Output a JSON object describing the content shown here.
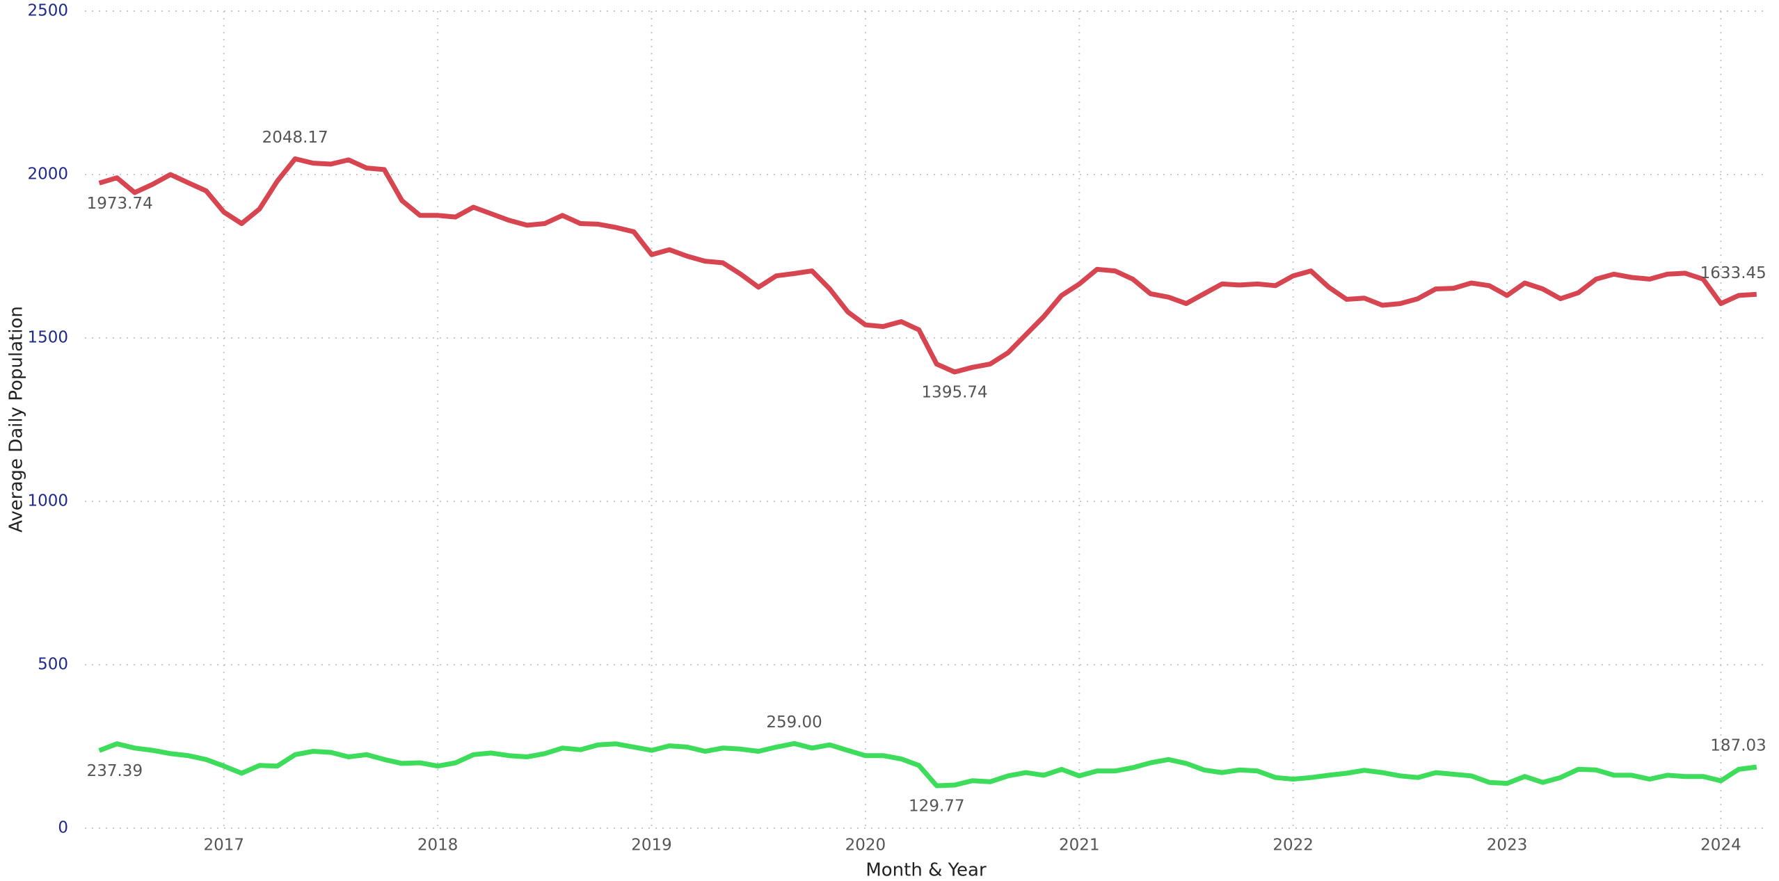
{
  "chart_data": {
    "type": "line",
    "x_label": "Month & Year",
    "y_label": "Average Daily Population",
    "x": [
      2016.417,
      2016.5,
      2016.583,
      2016.667,
      2016.75,
      2016.833,
      2016.917,
      2017.0,
      2017.083,
      2017.167,
      2017.25,
      2017.333,
      2017.417,
      2017.5,
      2017.583,
      2017.667,
      2017.75,
      2017.833,
      2017.917,
      2018.0,
      2018.083,
      2018.167,
      2018.25,
      2018.333,
      2018.417,
      2018.5,
      2018.583,
      2018.667,
      2018.75,
      2018.833,
      2018.917,
      2019.0,
      2019.083,
      2019.167,
      2019.25,
      2019.333,
      2019.417,
      2019.5,
      2019.583,
      2019.667,
      2019.75,
      2019.833,
      2019.917,
      2020.0,
      2020.083,
      2020.167,
      2020.25,
      2020.333,
      2020.417,
      2020.5,
      2020.583,
      2020.667,
      2020.75,
      2020.833,
      2020.917,
      2021.0,
      2021.083,
      2021.167,
      2021.25,
      2021.333,
      2021.417,
      2021.5,
      2021.583,
      2021.667,
      2021.75,
      2021.833,
      2021.917,
      2022.0,
      2022.083,
      2022.167,
      2022.25,
      2022.333,
      2022.417,
      2022.5,
      2022.583,
      2022.667,
      2022.75,
      2022.833,
      2022.917,
      2023.0,
      2023.083,
      2023.167,
      2023.25,
      2023.333,
      2023.417,
      2023.5,
      2023.583,
      2023.667,
      2023.75,
      2023.833,
      2023.917,
      2024.0,
      2024.083,
      2024.167
    ],
    "series": [
      {
        "color": "#d64550",
        "values": [
          1973.74,
          1990,
          1945,
          1970,
          2000,
          1975,
          1950,
          1885,
          1850,
          1895,
          1980,
          2048.17,
          2035,
          2032,
          2045,
          2020,
          2015,
          1920,
          1875,
          1875,
          1870,
          1900,
          1880,
          1860,
          1845,
          1850,
          1875,
          1850,
          1848,
          1838,
          1825,
          1755,
          1770,
          1750,
          1735,
          1730,
          1695,
          1655,
          1690,
          1697,
          1705,
          1650,
          1580,
          1540,
          1535,
          1550,
          1525,
          1420,
          1395.74,
          1410,
          1420,
          1455,
          1510,
          1565,
          1630,
          1665,
          1710,
          1705,
          1680,
          1635,
          1625,
          1605,
          1635,
          1665,
          1662,
          1665,
          1660,
          1690,
          1705,
          1655,
          1618,
          1622,
          1600,
          1605,
          1620,
          1650,
          1652,
          1668,
          1660,
          1630,
          1668,
          1650,
          1620,
          1638,
          1680,
          1695,
          1685,
          1680,
          1695,
          1698,
          1680,
          1605,
          1630,
          1633.45
        ],
        "value_labels": [
          "1973.74",
          null,
          null,
          null,
          null,
          null,
          null,
          null,
          null,
          null,
          null,
          "2048.17",
          null,
          null,
          null,
          null,
          null,
          null,
          null,
          null,
          null,
          null,
          null,
          null,
          null,
          null,
          null,
          null,
          null,
          null,
          null,
          null,
          null,
          null,
          null,
          null,
          null,
          null,
          null,
          null,
          null,
          null,
          null,
          null,
          null,
          null,
          null,
          null,
          "1395.74",
          null,
          null,
          null,
          null,
          null,
          null,
          null,
          null,
          null,
          null,
          null,
          null,
          null,
          null,
          null,
          null,
          null,
          null,
          null,
          null,
          null,
          null,
          null,
          null,
          null,
          null,
          null,
          null,
          null,
          null,
          null,
          null,
          null,
          null,
          null,
          null,
          null,
          null,
          null,
          null,
          null,
          null,
          null,
          null,
          "1633.45"
        ]
      },
      {
        "color": "#3ddc5a",
        "values": [
          237.39,
          258,
          245,
          238,
          228,
          222,
          210,
          190,
          168,
          192,
          190,
          225,
          235,
          232,
          218,
          225,
          210,
          198,
          200,
          190,
          200,
          225,
          230,
          222,
          218,
          228,
          245,
          240,
          255,
          258,
          248,
          238,
          252,
          248,
          235,
          245,
          242,
          235,
          248,
          259.0,
          245,
          255,
          238,
          222,
          222,
          212,
          192,
          129.77,
          132,
          145,
          142,
          160,
          170,
          162,
          180,
          160,
          175,
          175,
          185,
          200,
          210,
          198,
          178,
          170,
          178,
          175,
          155,
          150,
          155,
          162,
          168,
          177,
          170,
          160,
          155,
          170,
          165,
          160,
          140,
          137,
          158,
          140,
          155,
          180,
          178,
          162,
          162,
          150,
          162,
          158,
          158,
          145,
          180,
          187.03
        ],
        "value_labels": [
          "237.39",
          null,
          null,
          null,
          null,
          null,
          null,
          null,
          null,
          null,
          null,
          null,
          null,
          null,
          null,
          null,
          null,
          null,
          null,
          null,
          null,
          null,
          null,
          null,
          null,
          null,
          null,
          null,
          null,
          null,
          null,
          null,
          null,
          null,
          null,
          null,
          null,
          null,
          null,
          "259.00",
          null,
          null,
          null,
          null,
          null,
          null,
          null,
          "129.77",
          null,
          null,
          null,
          null,
          null,
          null,
          null,
          null,
          null,
          null,
          null,
          null,
          null,
          null,
          null,
          null,
          null,
          null,
          null,
          null,
          null,
          null,
          null,
          null,
          null,
          null,
          null,
          null,
          null,
          null,
          null,
          null,
          null,
          null,
          null,
          null,
          null,
          null,
          null,
          null,
          null,
          null,
          null,
          null,
          null,
          "187.03"
        ]
      }
    ],
    "xlim": [
      2016.35,
      2024.21
    ],
    "xticks": [
      2017,
      2018,
      2019,
      2020,
      2021,
      2022,
      2023,
      2024
    ],
    "ylim": [
      0,
      2500
    ],
    "yticks": [
      0,
      500,
      1000,
      1500,
      2000,
      2500
    ],
    "grid": true
  }
}
